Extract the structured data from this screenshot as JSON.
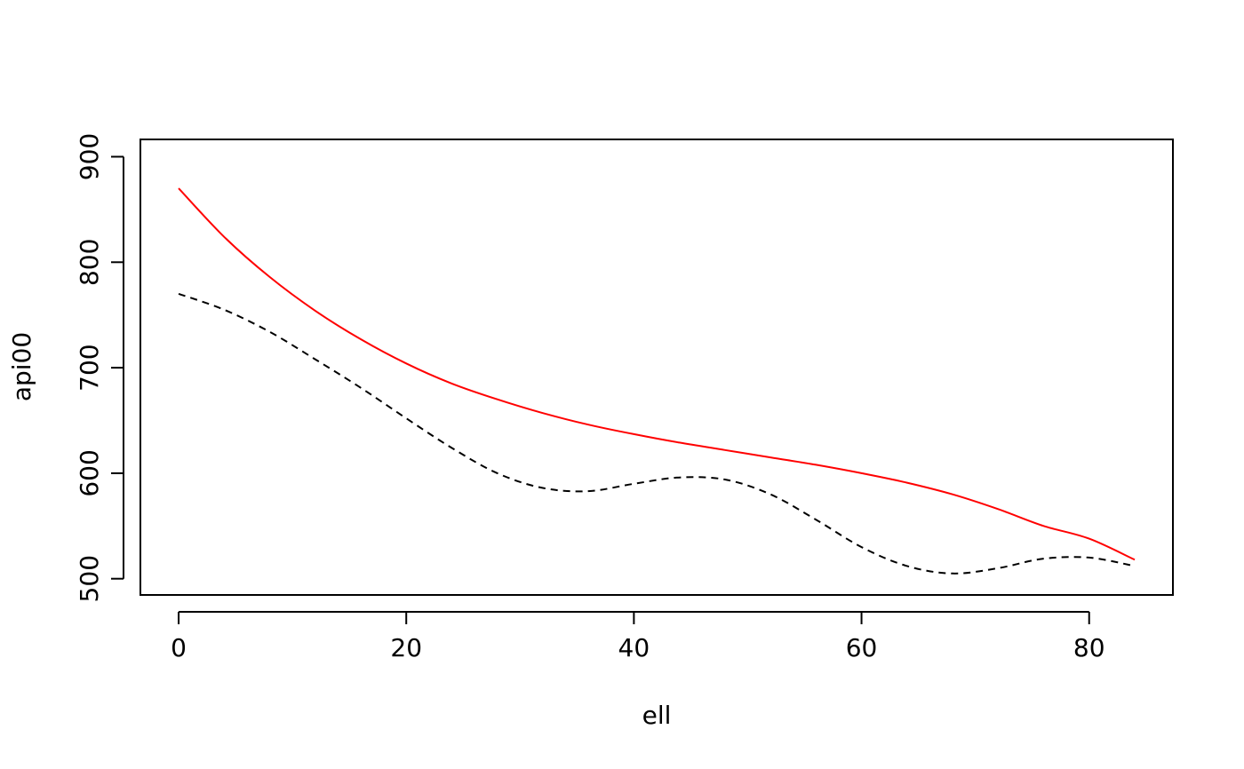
{
  "chart_data": {
    "type": "line",
    "title": "",
    "xlabel": "ell",
    "ylabel": "api00",
    "xlim": [
      -3.36,
      87.36
    ],
    "ylim": [
      484.6,
      916.4
    ],
    "xticks": [
      0,
      20,
      40,
      60,
      80
    ],
    "yticks": [
      500,
      600,
      700,
      800,
      900
    ],
    "grid": false,
    "legend": "none",
    "series": [
      {
        "color": "#ff0000",
        "dash": "solid",
        "x": [
          0,
          4,
          8,
          12,
          16,
          20,
          24,
          28,
          32,
          36,
          40,
          44,
          48,
          52,
          56,
          60,
          64,
          68,
          72,
          76,
          80,
          84
        ],
        "y": [
          870,
          824,
          786,
          754,
          727,
          704,
          685,
          670,
          657,
          646,
          637,
          629,
          622,
          615,
          608,
          600,
          591,
          580,
          566,
          550,
          538,
          518
        ]
      },
      {
        "color": "#000000",
        "dash": "dashed",
        "x": [
          0,
          4,
          8,
          12,
          16,
          20,
          24,
          28,
          32,
          36,
          40,
          44,
          48,
          52,
          56,
          60,
          64,
          68,
          72,
          76,
          80,
          84
        ],
        "y": [
          770,
          755,
          734,
          708,
          681,
          652,
          624,
          600,
          586,
          583,
          590,
          596,
          594,
          580,
          556,
          530,
          512,
          505,
          510,
          519,
          520,
          512
        ]
      }
    ]
  }
}
